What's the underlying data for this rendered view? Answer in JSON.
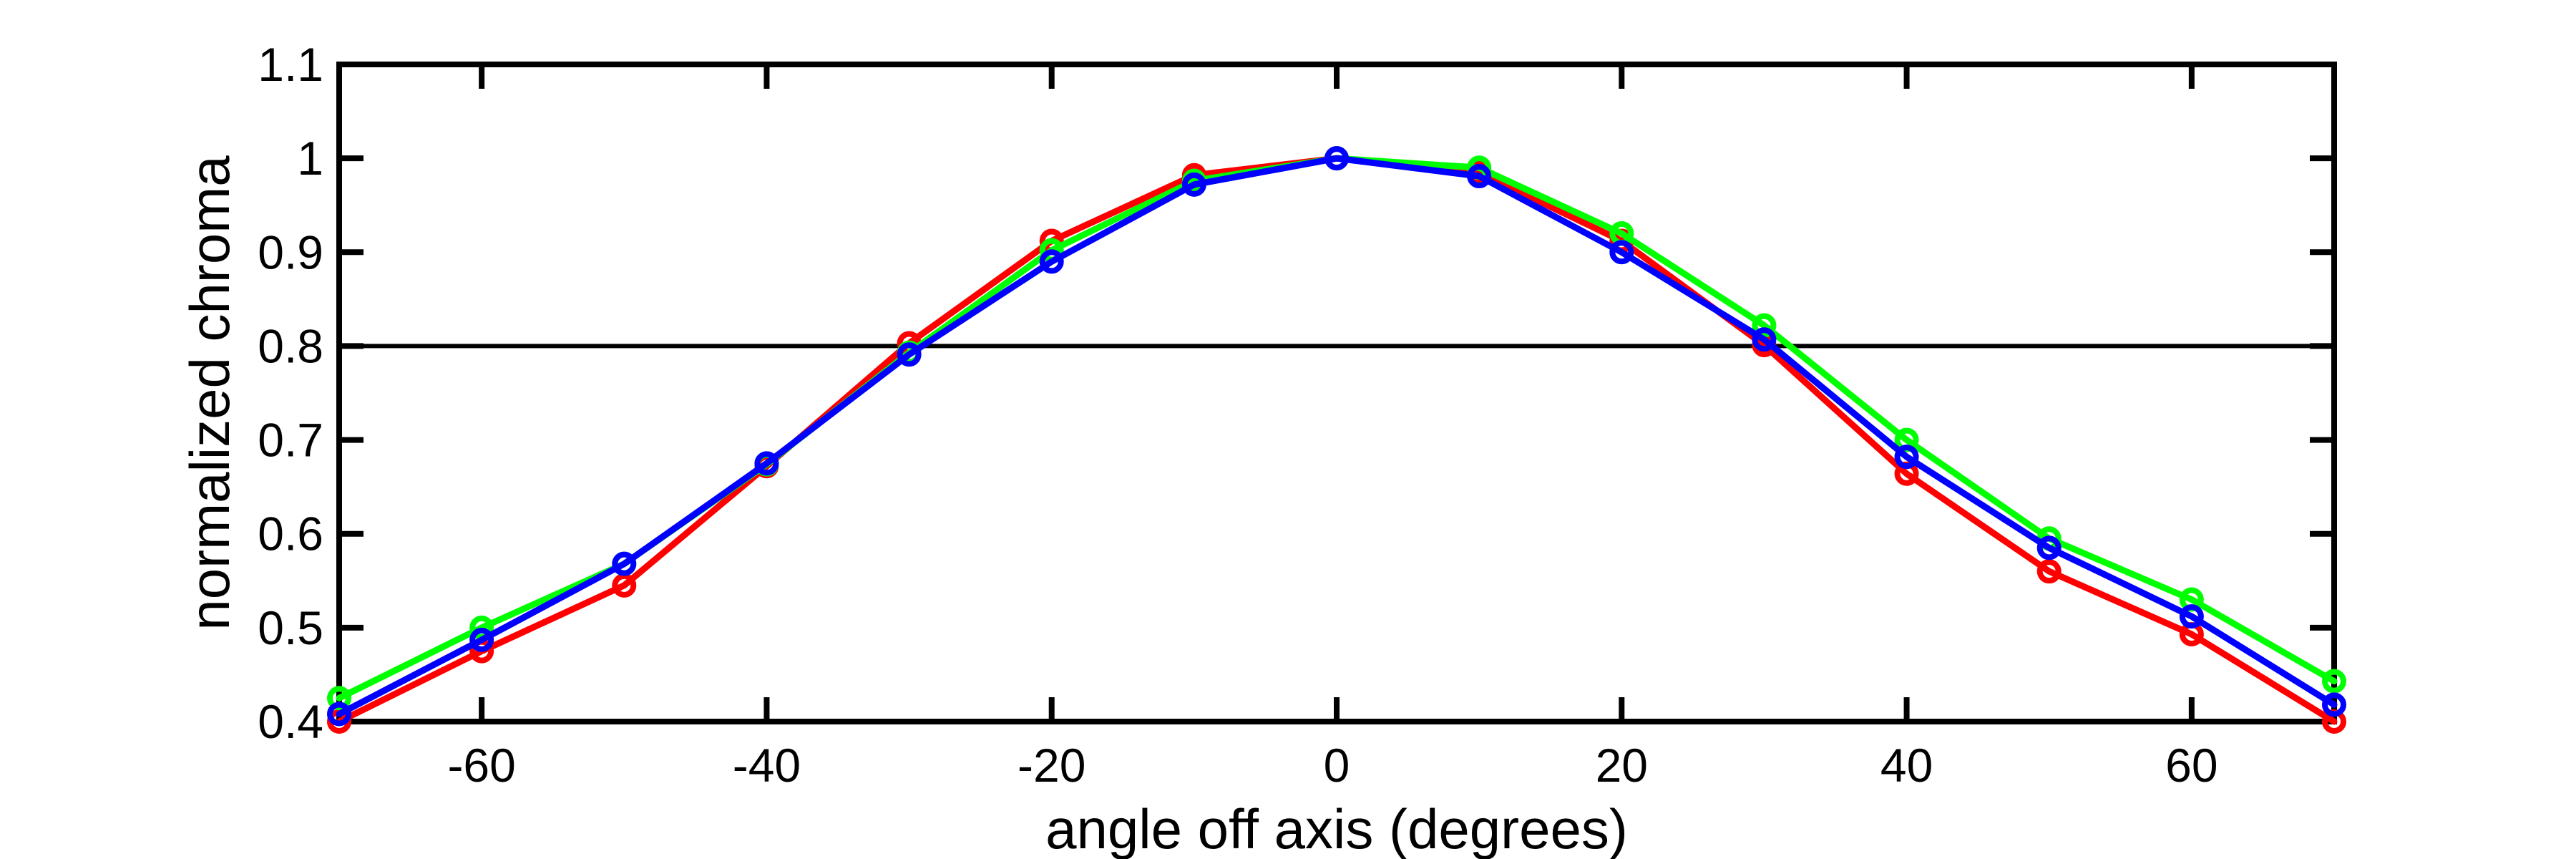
{
  "figure": {
    "background": "#ffffff",
    "axes_color": "#000000"
  },
  "chart_data": {
    "type": "line",
    "title": "",
    "xlabel": "angle off axis (degrees)",
    "ylabel": "normalized chroma",
    "xlim": [
      -70,
      70
    ],
    "ylim": [
      0.4,
      1.1
    ],
    "x_ticks": [
      -60,
      -40,
      -20,
      0,
      20,
      40,
      60
    ],
    "x_tick_labels": [
      "-60",
      "-40",
      "-20",
      "0",
      "20",
      "40",
      "60"
    ],
    "y_ticks": [
      0.4,
      0.5,
      0.6,
      0.7,
      0.8,
      0.9,
      1.0,
      1.1
    ],
    "y_tick_labels": [
      "0.4",
      "0.5",
      "0.6",
      "0.7",
      "0.8",
      "0.9",
      "1",
      "1.1"
    ],
    "grid": false,
    "legend": "none",
    "box": true,
    "reference_line": {
      "y": 0.8,
      "color": "#000000"
    },
    "x": [
      -70,
      -60,
      -50,
      -40,
      -30,
      -20,
      -10,
      0,
      10,
      20,
      30,
      40,
      50,
      60,
      70
    ],
    "series": [
      {
        "name": "red",
        "color": "#ff0000",
        "marker": "circle",
        "values": [
          0.4,
          0.475,
          0.545,
          0.672,
          0.803,
          0.912,
          0.982,
          1.0,
          0.985,
          0.912,
          0.801,
          0.664,
          0.56,
          0.493,
          0.4
        ]
      },
      {
        "name": "green",
        "color": "#00ff00",
        "marker": "circle",
        "values": [
          0.425,
          0.5,
          0.568,
          0.674,
          0.793,
          0.902,
          0.976,
          1.0,
          0.99,
          0.92,
          0.822,
          0.7,
          0.595,
          0.53,
          0.443
        ]
      },
      {
        "name": "blue",
        "color": "#0000ff",
        "marker": "circle",
        "values": [
          0.408,
          0.487,
          0.568,
          0.675,
          0.791,
          0.89,
          0.972,
          1.0,
          0.981,
          0.9,
          0.807,
          0.682,
          0.585,
          0.512,
          0.418
        ]
      }
    ]
  }
}
